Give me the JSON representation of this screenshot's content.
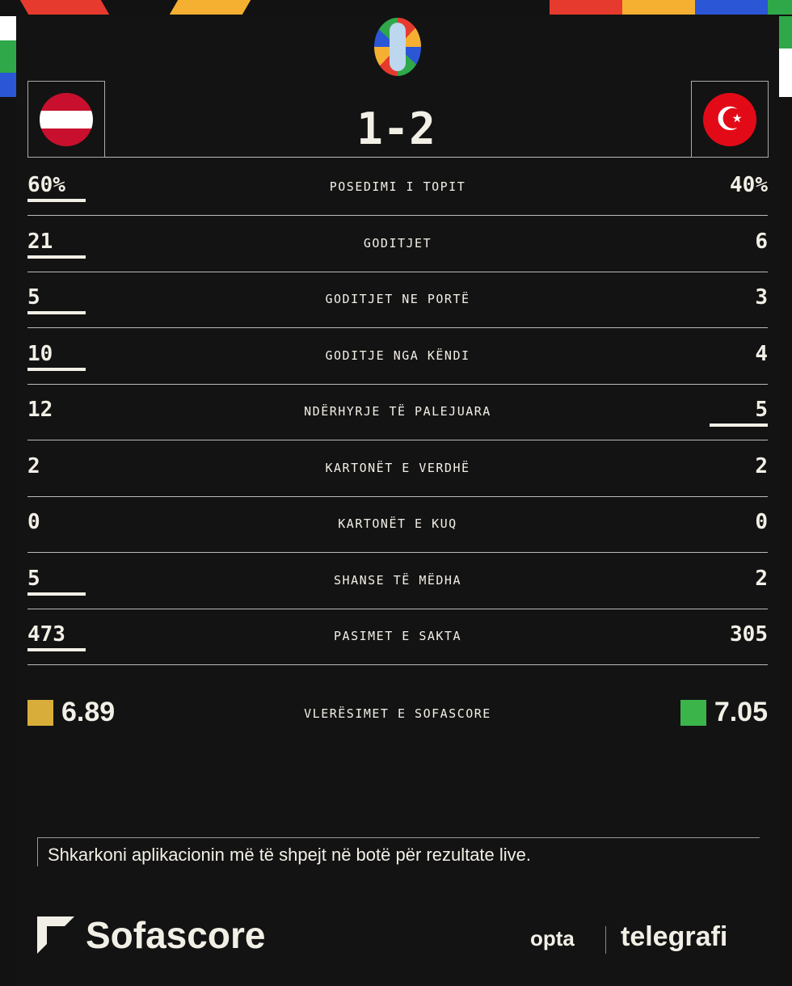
{
  "match": {
    "score": "1-2",
    "home_team": "Austria",
    "away_team": "Turkey"
  },
  "stats": [
    {
      "label": "POSEDIMI I TOPIT",
      "home": "60%",
      "away": "40%",
      "leader": "home"
    },
    {
      "label": "GODITJET",
      "home": "21",
      "away": "6",
      "leader": "home"
    },
    {
      "label": "GODITJET NE PORTË",
      "home": "5",
      "away": "3",
      "leader": "home"
    },
    {
      "label": "GODITJE NGA KËNDI",
      "home": "10",
      "away": "4",
      "leader": "home"
    },
    {
      "label": "NDËRHYRJE TË PALEJUARA",
      "home": "12",
      "away": "5",
      "leader": "away"
    },
    {
      "label": "KARTONËT E VERDHË",
      "home": "2",
      "away": "2",
      "leader": "none"
    },
    {
      "label": "KARTONËT E KUQ",
      "home": "0",
      "away": "0",
      "leader": "none"
    },
    {
      "label": "SHANSE TË MËDHA",
      "home": "5",
      "away": "2",
      "leader": "home"
    },
    {
      "label": "PASIMET E SAKTA",
      "home": "473",
      "away": "305",
      "leader": "home"
    }
  ],
  "ratings": {
    "label": "VLERËSIMET E SOFASCORE",
    "home": "6.89",
    "away": "7.05",
    "home_color": "#d8ad3a",
    "away_color": "#3bb54a"
  },
  "footer": {
    "cta": "Shkarkoni aplikacionin më të shpejt në botë për rezultate live.",
    "brand": "Sofascore",
    "partner1": "opta",
    "partner2": "telegrafi"
  }
}
